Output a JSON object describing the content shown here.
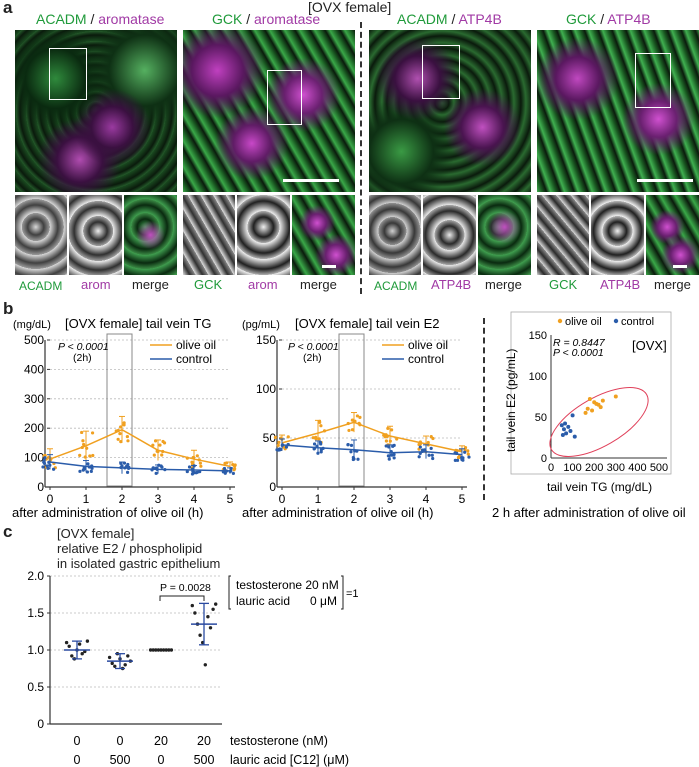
{
  "panel_a": {
    "letter": "a",
    "header": "[OVX female]",
    "groups": [
      {
        "title_a": "ACADM",
        "sep": " / ",
        "title_b": "aromatase",
        "title_b_color": "purple",
        "title_a_color": "green",
        "sub": [
          {
            "label": "ACADM",
            "color": "green"
          },
          {
            "label": "arom",
            "color": "purple"
          },
          {
            "label": "merge",
            "color": "dark"
          }
        ]
      },
      {
        "title_a": "GCK",
        "sep": " / ",
        "title_b": "aromatase",
        "title_b_color": "purple",
        "title_a_color": "green",
        "sub": [
          {
            "label": "GCK",
            "color": "green"
          },
          {
            "label": "arom",
            "color": "purple"
          },
          {
            "label": "merge",
            "color": "dark"
          }
        ]
      },
      {
        "title_a": "ACADM",
        "sep": " / ",
        "title_b": "ATP4B",
        "title_b_color": "purple",
        "title_a_color": "green",
        "sub": [
          {
            "label": "ACADM",
            "color": "green"
          },
          {
            "label": "ATP4B",
            "color": "purple"
          },
          {
            "label": "merge",
            "color": "dark"
          }
        ]
      },
      {
        "title_a": "GCK",
        "sep": " / ",
        "title_b": "ATP4B",
        "title_b_color": "purple",
        "title_a_color": "green",
        "sub": [
          {
            "label": "GCK",
            "color": "green"
          },
          {
            "label": "ATP4B",
            "color": "purple"
          },
          {
            "label": "merge",
            "color": "dark"
          }
        ]
      }
    ]
  },
  "panel_b": {
    "letter": "b",
    "tg": {
      "unit": "(mg/dL)",
      "title": "[OVX female] tail vein TG",
      "pvalue": "P < 0.0001",
      "pnote": "(2h)",
      "xlabel": "after administration of olive oil (h)",
      "legend_oil": "olive oil",
      "legend_ctrl": "control",
      "yticks": [
        "0",
        "100",
        "200",
        "300",
        "400",
        "500"
      ],
      "xticks": [
        "0",
        "1",
        "2",
        "3",
        "4",
        "5"
      ]
    },
    "e2": {
      "unit": "(pg/mL)",
      "title": "[OVX female] tail vein E2",
      "pvalue": "P < 0.0001",
      "pnote": "(2h)",
      "xlabel": "after administration of olive oil (h)",
      "legend_oil": "olive oil",
      "legend_ctrl": "control",
      "yticks": [
        "0",
        "50",
        "100",
        "150"
      ],
      "xticks": [
        "0",
        "1",
        "2",
        "3",
        "4",
        "5"
      ]
    },
    "corr": {
      "legend_oil": "olive oil",
      "legend_ctrl": "control",
      "r": "R = 0.8447",
      "p": "P < 0.0001",
      "tag": "[OVX]",
      "xlabel": "tail vein TG (mg/dL)",
      "ylabel": "tail vein E2 (pg/mL)",
      "caption": "2 h after administration of olive oil",
      "xticks": [
        "0",
        "100",
        "200",
        "300",
        "400",
        "500"
      ],
      "yticks": [
        "0",
        "50",
        "100",
        "150"
      ]
    }
  },
  "panel_c": {
    "letter": "c",
    "title_lines": [
      "[OVX female]",
      "relative E2 / phospholipid",
      "in isolated gastric epithelium"
    ],
    "pvalue": "P = 0.0028",
    "ref_line1": "testosterone 20 nM",
    "ref_line2": "lauric acid      0 μM",
    "ref_eq": "=1",
    "yticks": [
      "0",
      "0.5",
      "1.0",
      "1.5",
      "2.0"
    ],
    "row1_label": "testosterone (nM)",
    "row2_label": "lauric acid [C12] (μM)",
    "row1": [
      "0",
      "0",
      "20",
      "20"
    ],
    "row2": [
      "0",
      "500",
      "0",
      "500"
    ]
  },
  "colors": {
    "oil": "#f0a020",
    "ctrl": "#2a5caa",
    "ellipse": "#e0405a",
    "green": "#1f9a3a",
    "purple": "#a13aa5"
  },
  "chart_data": [
    {
      "type": "line",
      "xlabel": "after administration of olive oil (h)",
      "ylabel": "(mg/dL)",
      "title": "[OVX female] tail vein TG",
      "x": [
        0,
        1,
        2,
        3,
        4,
        5
      ],
      "ylim": [
        0,
        500
      ],
      "series": [
        {
          "name": "olive oil",
          "values": [
            95,
            140,
            195,
            125,
            95,
            70
          ],
          "sd": [
            35,
            50,
            45,
            35,
            30,
            15
          ]
        },
        {
          "name": "control",
          "values": [
            85,
            70,
            65,
            60,
            58,
            55
          ],
          "sd": [
            25,
            20,
            20,
            15,
            15,
            10
          ]
        }
      ]
    },
    {
      "type": "line",
      "xlabel": "after administration of olive oil (h)",
      "ylabel": "(pg/mL)",
      "title": "[OVX female] tail vein E2",
      "x": [
        0,
        1,
        2,
        3,
        4,
        5
      ],
      "ylim": [
        0,
        150
      ],
      "series": [
        {
          "name": "olive oil",
          "values": [
            45,
            55,
            66,
            52,
            44,
            36
          ],
          "sd": [
            8,
            13,
            10,
            10,
            8,
            6
          ]
        },
        {
          "name": "control",
          "values": [
            43,
            40,
            38,
            35,
            36,
            33
          ],
          "sd": [
            6,
            7,
            10,
            8,
            7,
            6
          ]
        }
      ]
    },
    {
      "type": "scatter",
      "xlabel": "tail vein TG (mg/dL)",
      "ylabel": "tail vein E2 (pg/mL)",
      "xlim": [
        0,
        500
      ],
      "ylim": [
        0,
        150
      ],
      "series": [
        {
          "name": "olive oil",
          "points": [
            [
              180,
              72
            ],
            [
              200,
              68
            ],
            [
              220,
              65
            ],
            [
              230,
              62
            ],
            [
              170,
              60
            ],
            [
              190,
              58
            ],
            [
              240,
              70
            ],
            [
              210,
              66
            ],
            [
              160,
              55
            ],
            [
              300,
              75
            ]
          ]
        },
        {
          "name": "control",
          "points": [
            [
              50,
              40
            ],
            [
              60,
              35
            ],
            [
              70,
              30
            ],
            [
              80,
              38
            ],
            [
              55,
              28
            ],
            [
              90,
              33
            ],
            [
              100,
              52
            ],
            [
              110,
              26
            ],
            [
              65,
              42
            ]
          ]
        }
      ]
    },
    {
      "type": "scatter",
      "ylim": [
        0,
        2.0
      ],
      "categories": [
        "0 / 0",
        "0 / 500",
        "20 / 0",
        "20 / 500"
      ],
      "series": [
        {
          "name": "relative E2 / phospholipid",
          "means": [
            1.0,
            0.85,
            1.0,
            1.35
          ],
          "sd": [
            0.12,
            0.1,
            0,
            0.28
          ],
          "points": [
            [
              1.1,
              1.05,
              0.92,
              0.88,
              1.0,
              1.08,
              0.95,
              0.98,
              1.12
            ],
            [
              0.9,
              0.82,
              0.78,
              0.95,
              0.88,
              0.75,
              0.8,
              0.92,
              0.85
            ],
            [
              1,
              1,
              1,
              1,
              1,
              1,
              1,
              1,
              1
            ],
            [
              1.6,
              1.5,
              1.35,
              1.2,
              1.1,
              0.8,
              1.45,
              1.3,
              1.55,
              1.62
            ]
          ]
        }
      ]
    }
  ]
}
